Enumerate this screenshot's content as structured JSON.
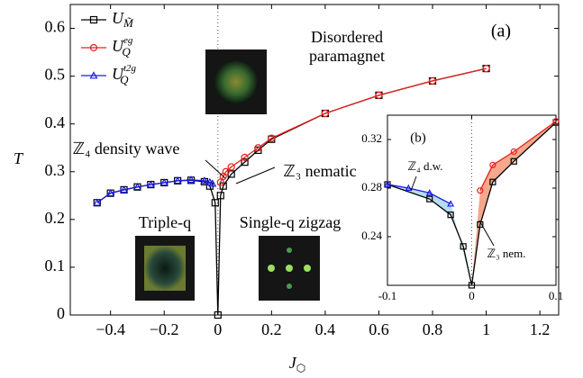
{
  "chart_data": [
    {
      "type": "line",
      "panel_label": "(a)",
      "xlabel": "J",
      "xlabel_sub": "⬡",
      "ylabel": "T",
      "xlim": [
        -0.55,
        1.27
      ],
      "ylim": [
        0,
        0.65
      ],
      "xticks": [
        {
          "value": -0.4,
          "label": "−0.4"
        },
        {
          "value": -0.2,
          "label": "−0.2"
        },
        0,
        0.2,
        0.4,
        0.6,
        0.8,
        1,
        1.2
      ],
      "yticks": [
        0,
        0.1,
        0.2,
        0.3,
        0.4,
        0.5,
        0.6
      ],
      "annotations": [
        "Disordered",
        "paramagnet",
        "ℤ₄ density wave",
        "ℤ₃ nematic",
        "Triple-q",
        "Single-q zigzag"
      ],
      "series": [
        {
          "name": "U",
          "subscript": "M̃",
          "color": "#000000",
          "marker": "square",
          "x": [
            -0.45,
            -0.4,
            -0.35,
            -0.3,
            -0.25,
            -0.2,
            -0.15,
            -0.1,
            -0.05,
            -0.03,
            -0.01,
            0,
            0.01,
            0.02,
            0.05,
            0.1,
            0.15,
            0.2,
            0.4,
            0.6,
            0.8,
            1.0
          ],
          "values": [
            0.235,
            0.255,
            0.262,
            0.268,
            0.273,
            0.277,
            0.281,
            0.282,
            0.279,
            0.27,
            0.235,
            0,
            0.25,
            0.27,
            0.295,
            0.32,
            0.345,
            0.368,
            0.422,
            0.46,
            0.49,
            0.516
          ]
        },
        {
          "name": "U",
          "subscript": "Q",
          "superscript": "eg",
          "color": "#e8201c",
          "marker": "circle",
          "x": [
            0.01,
            0.02,
            0.03,
            0.05,
            0.1,
            0.15,
            0.2,
            0.4,
            0.6,
            0.8,
            1.0
          ],
          "values": [
            0.278,
            0.29,
            0.3,
            0.31,
            0.33,
            0.35,
            0.37,
            0.422,
            0.46,
            0.49,
            0.516
          ]
        },
        {
          "name": "U",
          "subscript": "Q",
          "superscript": "t2g",
          "color": "#1a1ae6",
          "marker": "triangle",
          "x": [
            -0.45,
            -0.4,
            -0.35,
            -0.3,
            -0.25,
            -0.2,
            -0.15,
            -0.1,
            -0.05,
            -0.03,
            -0.02
          ],
          "values": [
            0.235,
            0.255,
            0.262,
            0.268,
            0.273,
            0.277,
            0.281,
            0.283,
            0.281,
            0.278,
            0.275
          ]
        }
      ]
    },
    {
      "type": "line",
      "panel_label": "(b)",
      "xlim": [
        -0.1,
        0.1
      ],
      "ylim": [
        0.2,
        0.34
      ],
      "xticks": [
        -0.1,
        0,
        0.1
      ],
      "yticks": [
        0.24,
        0.28,
        0.32
      ],
      "annotations": [
        "ℤ₄ d.w.",
        "ℤ₃ nem."
      ],
      "series": [
        {
          "color": "#000000",
          "marker": "square",
          "fill_below_of": null,
          "x": [
            -0.1,
            -0.05,
            -0.025,
            -0.01,
            0,
            0.01,
            0.025,
            0.05,
            0.1
          ],
          "values": [
            0.283,
            0.271,
            0.258,
            0.232,
            0.2,
            0.25,
            0.285,
            0.302,
            0.334
          ]
        },
        {
          "color": "#1a1ae6",
          "marker": "triangle",
          "fill": "#b8dcef",
          "x": [
            -0.1,
            -0.075,
            -0.05,
            -0.025
          ],
          "values": [
            0.283,
            0.28,
            0.276,
            0.267
          ]
        },
        {
          "color": "#e8201c",
          "marker": "circle",
          "fill": "#f4a88c",
          "x": [
            0.01,
            0.025,
            0.05,
            0.1
          ],
          "values": [
            0.278,
            0.299,
            0.31,
            0.335
          ]
        }
      ]
    }
  ]
}
